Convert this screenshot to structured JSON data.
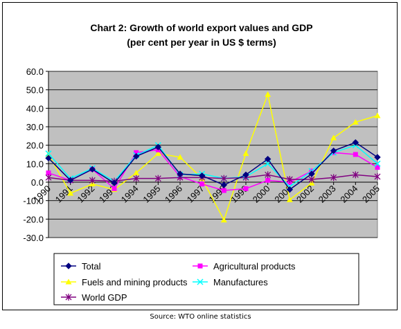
{
  "chart_data": {
    "type": "line",
    "title": "Chart 2: Growth of world export values and GDP",
    "subtitle": "(per cent per year in US $ terms)",
    "xlabel": "",
    "ylabel": "",
    "x": [
      "1990",
      "1991",
      "1992",
      "1993",
      "1994",
      "1995",
      "1996",
      "1997",
      "1998",
      "1999",
      "2000",
      "2001",
      "2002",
      "2003",
      "2004",
      "2005"
    ],
    "ylim": [
      -30,
      60
    ],
    "yticks": [
      "60.0",
      "50.0",
      "40.0",
      "30.0",
      "20.0",
      "10.0",
      "0.0",
      "-10.0",
      "-20.0",
      "-30.0"
    ],
    "grid": true,
    "legend_position": "bottom",
    "plot_background": "#c0c0c0",
    "series": [
      {
        "name": "Total",
        "color": "#000080",
        "marker": "diamond",
        "values": [
          13,
          1,
          7,
          -0.5,
          14,
          19,
          4.5,
          3.5,
          -1.5,
          4,
          12.5,
          -4,
          4.5,
          17,
          21.5,
          13.5
        ]
      },
      {
        "name": "Agricultural products",
        "color": "#ff00ff",
        "marker": "square",
        "values": [
          5,
          1,
          7,
          -3.5,
          16,
          17.5,
          3,
          -1,
          -4.5,
          -3.5,
          1,
          0,
          6,
          16,
          15,
          8
        ]
      },
      {
        "name": "Fuels and mining  products",
        "color": "#ffff00",
        "marker": "triangle",
        "values": [
          15,
          -6,
          -1,
          -4,
          5,
          15.5,
          13.5,
          2,
          -20.5,
          15.5,
          47.5,
          -9.5,
          -0.5,
          24,
          32.5,
          36
        ]
      },
      {
        "name": "Manufactures",
        "color": "#00ffff",
        "marker": "x",
        "values": [
          15.5,
          2,
          7.5,
          0.5,
          14.5,
          20,
          4,
          4.5,
          2,
          3,
          10,
          -2.5,
          6,
          16,
          20,
          10
        ]
      },
      {
        "name": "World GDP",
        "color": "#800080",
        "marker": "star",
        "values": [
          2.5,
          1,
          1,
          0.5,
          2,
          2,
          2.5,
          2.5,
          2,
          2.5,
          4,
          1.5,
          1.5,
          2.5,
          4,
          3
        ]
      }
    ],
    "source": "Source: WTO online statistics"
  }
}
